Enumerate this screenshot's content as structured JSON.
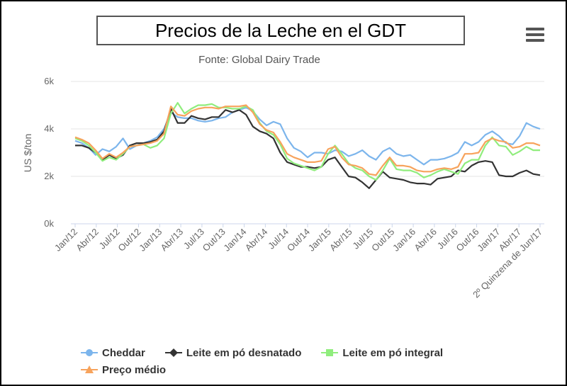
{
  "title": "Precios de la Leche en el GDT",
  "menu_icon": "hamburger-menu-icon",
  "chart_data": {
    "type": "line",
    "subtitle": "Fonte: Global Dairy Trade",
    "ylabel": "US $/ton",
    "ylim": [
      0,
      6000
    ],
    "yticks": [
      0,
      2000,
      4000,
      6000
    ],
    "ytick_labels": [
      "0k",
      "2k",
      "4k",
      "6k"
    ],
    "x_tick_labels": [
      "Jan/12",
      "Abr/12",
      "Jul/12",
      "Out/12",
      "Jan/13",
      "Abr/13",
      "Jul/13",
      "Out/13",
      "Jan/14",
      "Abr/14",
      "Jul/14",
      "Out/14",
      "Jan/15",
      "Abr/15",
      "Jul/15",
      "Out/15",
      "Jan/16",
      "Abr/16",
      "Jul/16",
      "Out/16",
      "Jan/17",
      "Abr/17",
      "2º Quinzena de Jun/17"
    ],
    "grid": true,
    "legend_position": "bottom",
    "series": [
      {
        "name": "Cheddar",
        "color": "#7cb5ec",
        "marker": "circle",
        "values": [
          3500,
          3400,
          3200,
          2900,
          3150,
          3050,
          3250,
          3600,
          3150,
          3300,
          3400,
          3500,
          3650,
          4000,
          4700,
          4500,
          4450,
          4450,
          4350,
          4300,
          4350,
          4450,
          4500,
          4700,
          4800,
          4900,
          4750,
          4400,
          4150,
          4300,
          4200,
          3600,
          3200,
          3050,
          2800,
          3000,
          3000,
          2950,
          3100,
          3050,
          2850,
          2950,
          3100,
          2850,
          2700,
          3050,
          3200,
          2950,
          2850,
          2900,
          2700,
          2500,
          2700,
          2700,
          2750,
          2850,
          3000,
          3450,
          3300,
          3450,
          3750,
          3900,
          3700,
          3400,
          3350,
          3700,
          4250,
          4100,
          4000
        ]
      },
      {
        "name": "Leite em pó desnatado",
        "color": "#333333",
        "marker": "diamond",
        "values": [
          3300,
          3300,
          3200,
          3000,
          2700,
          2900,
          2750,
          2900,
          3300,
          3400,
          3400,
          3450,
          3550,
          3900,
          4850,
          4250,
          4250,
          4550,
          4450,
          4400,
          4500,
          4500,
          4800,
          4700,
          4800,
          4600,
          4100,
          3900,
          3800,
          3600,
          3000,
          2600,
          2500,
          2400,
          2400,
          2350,
          2400,
          2700,
          2800,
          2400,
          2000,
          1950,
          1750,
          1500,
          1850,
          2200,
          1950,
          1900,
          1850,
          1750,
          1700,
          1700,
          1650,
          1900,
          1950,
          2000,
          2250,
          2200,
          2450,
          2600,
          2650,
          2600,
          2050,
          2000,
          2000,
          2150,
          2250,
          2100,
          2050
        ]
      },
      {
        "name": "Leite em pó integral",
        "color": "#90ed7d",
        "marker": "square",
        "values": [
          3600,
          3500,
          3300,
          3000,
          2650,
          2800,
          2700,
          2950,
          3250,
          3300,
          3350,
          3200,
          3300,
          3600,
          4650,
          5100,
          4650,
          4850,
          5000,
          5000,
          5050,
          4900,
          4900,
          4850,
          4850,
          4950,
          4800,
          4250,
          3900,
          3750,
          3350,
          2750,
          2550,
          2450,
          2350,
          2250,
          2400,
          2950,
          3300,
          2950,
          2550,
          2350,
          2250,
          2000,
          1850,
          2250,
          2750,
          2300,
          2250,
          2250,
          2150,
          1950,
          2050,
          2200,
          2300,
          2200,
          2100,
          2550,
          2700,
          2700,
          3300,
          3650,
          3300,
          3250,
          2900,
          3050,
          3250,
          3100,
          3100
        ]
      },
      {
        "name": "Preço médio",
        "color": "#f7a35c",
        "marker": "triangle",
        "values": [
          3650,
          3550,
          3400,
          3100,
          2750,
          2950,
          2800,
          3000,
          3250,
          3300,
          3350,
          3400,
          3500,
          3800,
          4950,
          4600,
          4550,
          4750,
          4850,
          4900,
          4900,
          4850,
          4950,
          4950,
          4950,
          5000,
          4700,
          4200,
          3950,
          3850,
          3450,
          2950,
          2800,
          2700,
          2600,
          2600,
          2650,
          3150,
          3250,
          2800,
          2500,
          2450,
          2350,
          2100,
          2050,
          2450,
          2800,
          2450,
          2450,
          2400,
          2250,
          2200,
          2200,
          2300,
          2350,
          2300,
          2400,
          2950,
          2950,
          3000,
          3450,
          3600,
          3500,
          3450,
          3200,
          3250,
          3400,
          3400,
          3300
        ]
      }
    ]
  }
}
